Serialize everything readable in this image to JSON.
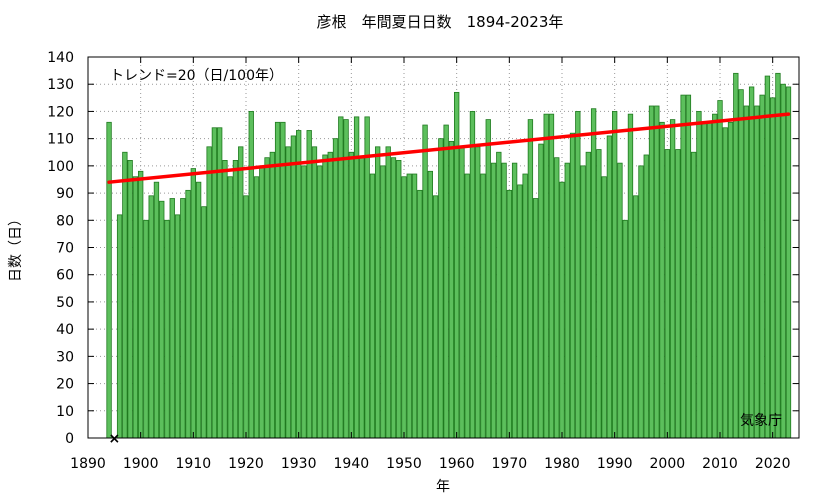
{
  "chart_data": {
    "type": "bar",
    "title": "彦根　年間夏日日数　1894-2023年",
    "xlabel": "年",
    "ylabel": "日数（日）",
    "trend_label": "トレンド=20（日/100年）",
    "source_label": "気象庁",
    "missing_marker": "×",
    "missing_years": [
      1895
    ],
    "xlim": [
      1890,
      2025
    ],
    "ylim": [
      0,
      140
    ],
    "x_ticks": [
      1890,
      1900,
      1910,
      1920,
      1930,
      1940,
      1950,
      1960,
      1970,
      1980,
      1990,
      2000,
      2010,
      2020
    ],
    "y_ticks": [
      0,
      10,
      20,
      30,
      40,
      50,
      60,
      70,
      80,
      90,
      100,
      110,
      120,
      130,
      140
    ],
    "grid": true,
    "bar_color": "#5cbf5c",
    "bar_edge_color": "#1f7a1f",
    "trend_color": "#ff0000",
    "trend": {
      "x": [
        1894,
        2023
      ],
      "y": [
        94,
        119
      ]
    },
    "x": [
      1894,
      1895,
      1896,
      1897,
      1898,
      1899,
      1900,
      1901,
      1902,
      1903,
      1904,
      1905,
      1906,
      1907,
      1908,
      1909,
      1910,
      1911,
      1912,
      1913,
      1914,
      1915,
      1916,
      1917,
      1918,
      1919,
      1920,
      1921,
      1922,
      1923,
      1924,
      1925,
      1926,
      1927,
      1928,
      1929,
      1930,
      1931,
      1932,
      1933,
      1934,
      1935,
      1936,
      1937,
      1938,
      1939,
      1940,
      1941,
      1942,
      1943,
      1944,
      1945,
      1946,
      1947,
      1948,
      1949,
      1950,
      1951,
      1952,
      1953,
      1954,
      1955,
      1956,
      1957,
      1958,
      1959,
      1960,
      1961,
      1962,
      1963,
      1964,
      1965,
      1966,
      1967,
      1968,
      1969,
      1970,
      1971,
      1972,
      1973,
      1974,
      1975,
      1976,
      1977,
      1978,
      1979,
      1980,
      1981,
      1982,
      1983,
      1984,
      1985,
      1986,
      1987,
      1988,
      1989,
      1990,
      1991,
      1992,
      1993,
      1994,
      1995,
      1996,
      1997,
      1998,
      1999,
      2000,
      2001,
      2002,
      2003,
      2004,
      2005,
      2006,
      2007,
      2008,
      2009,
      2010,
      2011,
      2012,
      2013,
      2014,
      2015,
      2016,
      2017,
      2018,
      2019,
      2020,
      2021,
      2022,
      2023
    ],
    "values": [
      116,
      null,
      82,
      105,
      102,
      96,
      98,
      80,
      89,
      94,
      87,
      80,
      88,
      82,
      88,
      91,
      99,
      94,
      85,
      107,
      114,
      114,
      102,
      96,
      102,
      107,
      89,
      120,
      96,
      100,
      103,
      105,
      116,
      116,
      107,
      111,
      113,
      100,
      113,
      107,
      100,
      104,
      105,
      110,
      118,
      117,
      105,
      118,
      103,
      118,
      97,
      107,
      100,
      107,
      103,
      102,
      96,
      97,
      97,
      91,
      115,
      98,
      89,
      110,
      115,
      109,
      127,
      107,
      97,
      120,
      107,
      97,
      117,
      101,
      105,
      101,
      91,
      101,
      93,
      97,
      117,
      88,
      108,
      119,
      119,
      103,
      94,
      101,
      112,
      120,
      100,
      105,
      121,
      106,
      96,
      111,
      120,
      101,
      80,
      119,
      89,
      100,
      104,
      122,
      122,
      116,
      106,
      117,
      106,
      126,
      126,
      105,
      120,
      116,
      116,
      119,
      124,
      114,
      116,
      134,
      128,
      122,
      129,
      122,
      126,
      133,
      125,
      134,
      130,
      129
    ]
  }
}
